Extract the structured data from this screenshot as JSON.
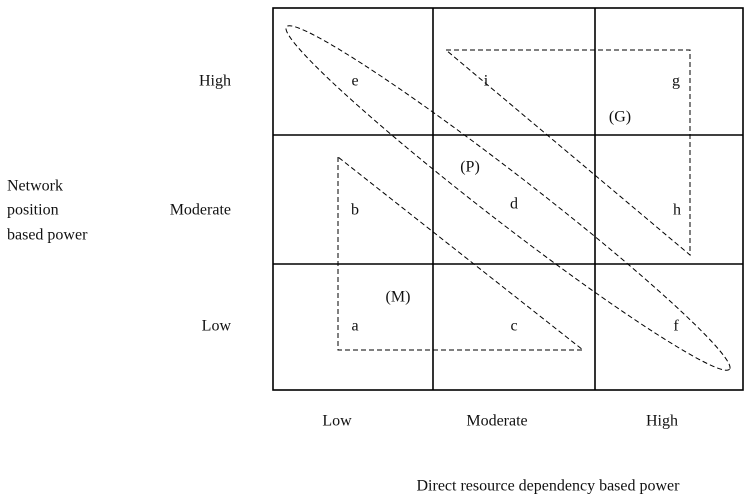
{
  "y_axis": {
    "title_lines": [
      "Network",
      "position",
      "based power"
    ],
    "levels": [
      "High",
      "Moderate",
      "Low"
    ]
  },
  "x_axis": {
    "title": "Direct resource dependency based power",
    "levels": [
      "Low",
      "Moderate",
      "High"
    ]
  },
  "cells": {
    "e": "e",
    "i": "i",
    "g": "g",
    "b": "b",
    "d": "d",
    "h": "h",
    "a": "a",
    "c": "c",
    "f": "f"
  },
  "groups": {
    "G": "(G)",
    "P": "(P)",
    "M": "(M)"
  }
}
